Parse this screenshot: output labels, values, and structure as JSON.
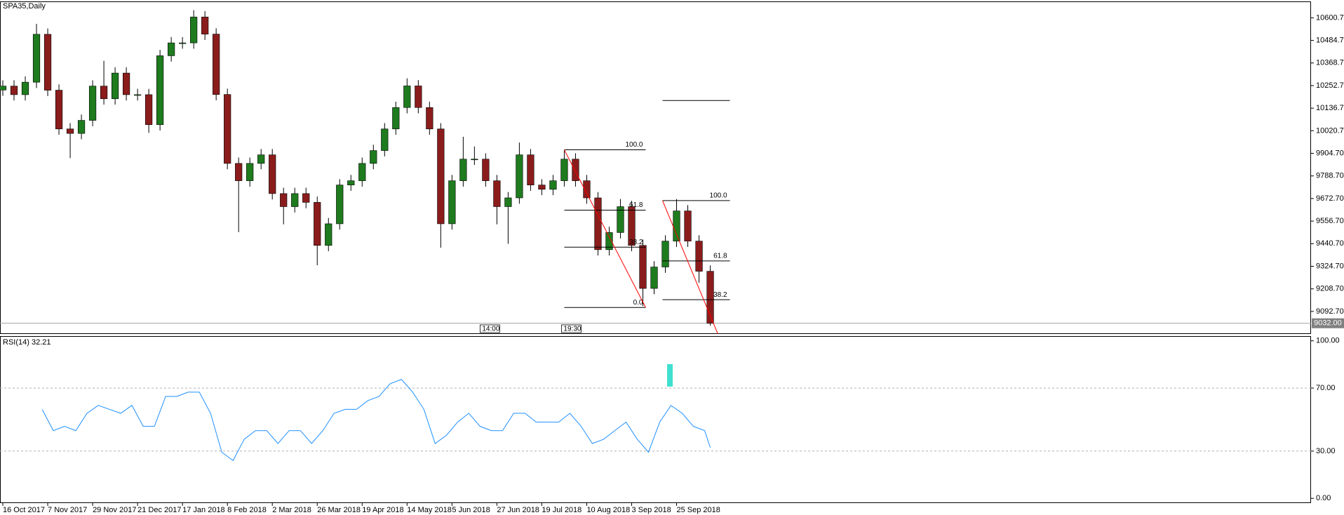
{
  "chart_data": [
    {
      "type": "candlestick",
      "title": "SPA35,Daily",
      "x": [
        0,
        4,
        8,
        12,
        16,
        20,
        24,
        28,
        32,
        36,
        40,
        44,
        48,
        52,
        56,
        60,
        64,
        68,
        72,
        76,
        80,
        84,
        88,
        92,
        96,
        100,
        104,
        108,
        112,
        116,
        120,
        124,
        128,
        132,
        136,
        140,
        144,
        148,
        152,
        156,
        160,
        164,
        168,
        172,
        176,
        180,
        184,
        188,
        192,
        196,
        200,
        204,
        208,
        212,
        216,
        220,
        224,
        228,
        232,
        236,
        240,
        244,
        248,
        252
      ],
      "open": [
        10230,
        10250,
        10206,
        10270,
        10516,
        10229,
        10030,
        10007,
        10074,
        10250,
        10185,
        10317,
        10206,
        10206,
        10052,
        10406,
        10472,
        10472,
        10605,
        10517,
        10207,
        9853,
        9764,
        9853,
        9897,
        9698,
        9631,
        9698,
        9653,
        9432,
        9543,
        9742,
        9764,
        9853,
        9919,
        10030,
        10140,
        10251,
        10140,
        10030,
        9543,
        9764,
        9875,
        9875,
        9764,
        9631,
        9676,
        9897,
        9742,
        9720,
        9764,
        9875,
        9764,
        9676,
        9410,
        9498,
        9631,
        9432,
        9211,
        9321,
        9454,
        9609,
        9454,
        9299
      ],
      "high": [
        10280,
        10280,
        10300,
        10570,
        10546,
        10259,
        10060,
        10104,
        10280,
        10380,
        10347,
        10347,
        10236,
        10236,
        10436,
        10502,
        10502,
        10640,
        10635,
        10547,
        10237,
        9883,
        9883,
        9927,
        9927,
        9728,
        9728,
        9728,
        9683,
        9573,
        9772,
        9794,
        9883,
        9949,
        10060,
        10170,
        10290,
        10281,
        10170,
        10060,
        9794,
        9990,
        9940,
        9905,
        9794,
        9706,
        9960,
        9927,
        9772,
        9794,
        9920,
        9905,
        9794,
        9706,
        9528,
        9670,
        9661,
        9462,
        9351,
        9484,
        9670,
        9639,
        9484,
        9329
      ],
      "low": [
        10200,
        10176,
        10176,
        10240,
        10199,
        10000,
        9880,
        9977,
        10044,
        10155,
        10155,
        10176,
        10176,
        10010,
        10022,
        10376,
        10442,
        10442,
        10487,
        10177,
        9823,
        9500,
        9734,
        9823,
        9668,
        9540,
        9601,
        9623,
        9330,
        9402,
        9513,
        9712,
        9734,
        9823,
        9889,
        10000,
        10110,
        10110,
        10000,
        9420,
        9513,
        9734,
        9845,
        9734,
        9540,
        9440,
        9646,
        9712,
        9690,
        9690,
        9734,
        9734,
        9646,
        9380,
        9380,
        9468,
        9402,
        9120,
        9181,
        9291,
        9424,
        9424,
        9240,
        9020
      ],
      "close": [
        10250,
        10206,
        10270,
        10516,
        10229,
        10030,
        10007,
        10074,
        10250,
        10185,
        10317,
        10206,
        10206,
        10052,
        10406,
        10472,
        10472,
        10605,
        10517,
        10207,
        9853,
        9764,
        9853,
        9897,
        9698,
        9631,
        9698,
        9653,
        9432,
        9543,
        9742,
        9764,
        9853,
        9919,
        10030,
        10140,
        10251,
        10140,
        10030,
        9543,
        9764,
        9875,
        9875,
        9764,
        9631,
        9676,
        9897,
        9742,
        9720,
        9764,
        9875,
        9764,
        9676,
        9410,
        9498,
        9631,
        9432,
        9211,
        9321,
        9454,
        9609,
        9454,
        9299,
        9032
      ],
      "up_color": "#1e7b1e",
      "down_color": "#8b1c1c",
      "wick_color": "#000000",
      "xlim": [
        -1,
        466
      ],
      "ylim": [
        8977,
        10685
      ],
      "yticks": [
        {
          "value": 10600.7,
          "label": "10600.70"
        },
        {
          "value": 10484.7,
          "label": "10484.70"
        },
        {
          "value": 10368.7,
          "label": "10368.70"
        },
        {
          "value": 10252.7,
          "label": "10252.70"
        },
        {
          "value": 10136.7,
          "label": "10136.70"
        },
        {
          "value": 10020.7,
          "label": "10020.70"
        },
        {
          "value": 9904.7,
          "label": "9904.70"
        },
        {
          "value": 9788.7,
          "label": "9788.70"
        },
        {
          "value": 9672.7,
          "label": "9672.70"
        },
        {
          "value": 9556.7,
          "label": "9556.70"
        },
        {
          "value": 9440.7,
          "label": "9440.70"
        },
        {
          "value": 9324.7,
          "label": "9324.70"
        },
        {
          "value": 9208.7,
          "label": "9208.70"
        },
        {
          "value": 9092.7,
          "label": "9092.70"
        }
      ],
      "xticks": [
        {
          "value": 0,
          "label": "16 Oct 2017"
        },
        {
          "value": 16,
          "label": "7 Nov 2017"
        },
        {
          "value": 32,
          "label": "29 Nov 2017"
        },
        {
          "value": 48,
          "label": "21 Dec 2017"
        },
        {
          "value": 64,
          "label": "17 Jan 2018"
        },
        {
          "value": 80,
          "label": "8 Feb 2018"
        },
        {
          "value": 96,
          "label": "2 Mar 2018"
        },
        {
          "value": 112,
          "label": "26 Mar 2018"
        },
        {
          "value": 128,
          "label": "19 Apr 2018"
        },
        {
          "value": 144,
          "label": "14 May 2018"
        },
        {
          "value": 160,
          "label": "5 Jun 2018"
        },
        {
          "value": 176,
          "label": "27 Jun 2018"
        },
        {
          "value": 192,
          "label": "19 Jul 2018"
        },
        {
          "value": 208,
          "label": "10 Aug 2018"
        },
        {
          "value": 224,
          "label": "3 Sep 2018"
        },
        {
          "value": 240,
          "label": "25 Sep 2018"
        }
      ],
      "current_price": {
        "value": 9032,
        "label": "9032.00"
      },
      "fibonacci": [
        {
          "x": [
            200,
            229
          ],
          "levels": [
            {
              "label": "100.0",
              "price": 9923
            },
            {
              "label": "61.8",
              "price": 9613
            },
            {
              "label": "38.2",
              "price": 9423
            },
            {
              "label": "0.0",
              "price": 9113
            }
          ]
        },
        {
          "x": [
            235,
            259
          ],
          "levels": [
            {
              "label": "100.0",
              "price": 9662
            },
            {
              "label": "61.8",
              "price": 9352
            },
            {
              "label": "38.2",
              "price": 9153
            }
          ]
        }
      ],
      "trendlines": [
        {
          "x": [
            200,
            229
          ],
          "y": [
            9923,
            9113
          ],
          "color": "#ff0000"
        },
        {
          "x": [
            235,
            255
          ],
          "y": [
            9662,
            8967
          ],
          "color": "#ff0000"
        }
      ],
      "hlines": [
        {
          "x": [
            235,
            259
          ],
          "y": 10176
        }
      ],
      "markers": [
        {
          "x": 170,
          "label": "14:00"
        },
        {
          "x": 199,
          "label": "19:30"
        }
      ]
    },
    {
      "type": "line",
      "title": "RSI(14) 32.21",
      "x": [
        14,
        18,
        22,
        26,
        30,
        34,
        38,
        42,
        46,
        50,
        54,
        58,
        62,
        66,
        70,
        74,
        78,
        82,
        86,
        90,
        94,
        98,
        102,
        106,
        110,
        114,
        118,
        122,
        126,
        130,
        134,
        138,
        142,
        146,
        150,
        154,
        158,
        162,
        166,
        170,
        174,
        178,
        182,
        186,
        190,
        194,
        198,
        202,
        206,
        210,
        214,
        218,
        222,
        226,
        230,
        234,
        238,
        242,
        246,
        250,
        252
      ],
      "series": [
        {
          "color": "#1e90ff",
          "values": [
            56.5,
            43,
            45.7,
            43,
            54,
            59,
            56.5,
            54,
            59,
            45.7,
            45.7,
            64.7,
            64.7,
            67.4,
            67.4,
            54,
            29.3,
            24,
            37.5,
            43,
            43,
            34.8,
            43,
            43,
            34.8,
            43,
            54,
            56.5,
            56.5,
            62,
            64.7,
            72.8,
            75.5,
            67.4,
            56.5,
            34.8,
            40,
            48.4,
            54,
            45.7,
            43,
            43,
            54,
            54,
            48.4,
            48.4,
            48.4,
            54,
            45.7,
            34.8,
            37.5,
            43,
            48.4,
            37.5,
            29.3,
            48.4,
            59,
            54,
            45.7,
            43,
            32.21
          ]
        }
      ],
      "xlim": [
        -1,
        466
      ],
      "ylim": [
        -3,
        103
      ],
      "yticks": [
        {
          "value": 100,
          "label": "100.00"
        },
        {
          "value": 70,
          "label": "70.00"
        },
        {
          "value": 30,
          "label": "30.00"
        },
        {
          "value": 0,
          "label": "0.00"
        }
      ]
    }
  ]
}
